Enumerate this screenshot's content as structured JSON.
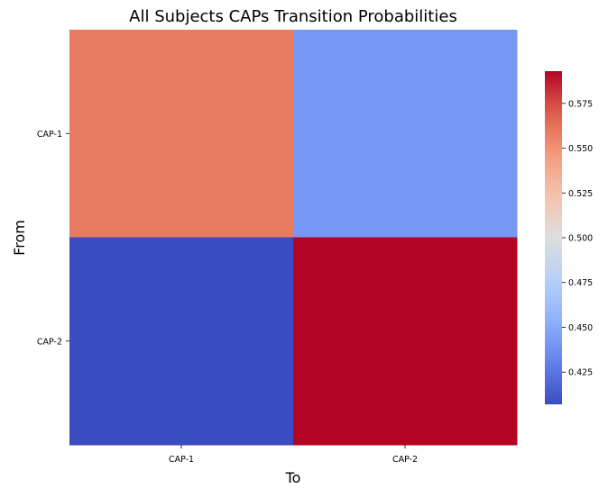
{
  "chart_data": {
    "type": "heatmap",
    "title": "All Subjects CAPs Transition Probabilities",
    "xlabel": "To",
    "ylabel": "From",
    "x_categories": [
      "CAP-1",
      "CAP-2"
    ],
    "y_categories": [
      "CAP-1",
      "CAP-2"
    ],
    "values": [
      [
        0.559,
        0.441
      ],
      [
        0.407,
        0.593
      ]
    ],
    "colormap": "coolwarm",
    "colorbar": {
      "range": [
        0.407,
        0.593
      ],
      "ticks": [
        0.425,
        0.45,
        0.475,
        0.5,
        0.525,
        0.55,
        0.575
      ],
      "tick_labels": [
        "0.425",
        "0.450",
        "0.475",
        "0.500",
        "0.525",
        "0.550",
        "0.575"
      ],
      "position": "right"
    }
  }
}
